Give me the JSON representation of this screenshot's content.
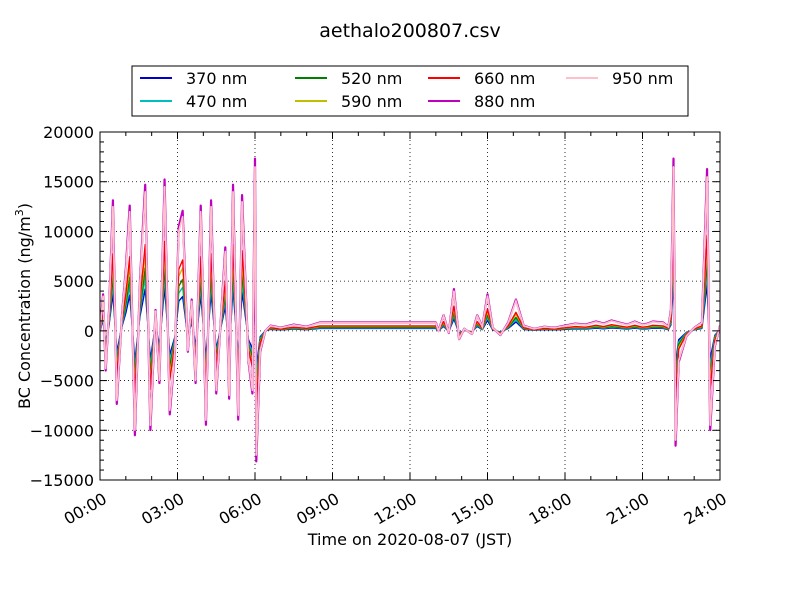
{
  "chart_data": {
    "type": "line",
    "title": "aethalo200807.csv",
    "xlabel": "Time on 2020-08-07 (JST)",
    "ylabel_main": "BC Concentration (ng/m",
    "ylabel_sup": "3",
    "ylabel_tail": ")",
    "xlim": [
      "00:00",
      "24:00"
    ],
    "ylim": [
      -15000,
      20000
    ],
    "x_ticks": [
      "00:00",
      "03:00",
      "06:00",
      "09:00",
      "12:00",
      "15:00",
      "18:00",
      "21:00",
      "24:00"
    ],
    "y_ticks": [
      "20000",
      "15000",
      "10000",
      "5000",
      "0",
      "−5000",
      "−10000",
      "−15000"
    ],
    "grid": true,
    "legend_placement": "top-center",
    "series": [
      {
        "name": "370 nm",
        "color": "#0000cc",
        "scale": 0.3
      },
      {
        "name": "470 nm",
        "color": "#00bfbf",
        "scale": 0.38
      },
      {
        "name": "520 nm",
        "color": "#008000",
        "scale": 0.45
      },
      {
        "name": "590 nm",
        "color": "#bfbf00",
        "scale": 0.55
      },
      {
        "name": "660 nm",
        "color": "#ff0000",
        "scale": 0.62
      },
      {
        "name": "880 nm",
        "color": "#bf00bf",
        "scale": 1.05
      },
      {
        "name": "950 nm",
        "color": "#ffc0cb",
        "scale": 1.0
      }
    ],
    "reference_series": {
      "description_of_values": "950 nm series, hours vs ng/m3",
      "points": [
        [
          0.0,
          0
        ],
        [
          0.12,
          3500
        ],
        [
          0.22,
          -3800
        ],
        [
          0.35,
          2000
        ],
        [
          0.5,
          12500
        ],
        [
          0.65,
          -7000
        ],
        [
          0.85,
          1500
        ],
        [
          1.0,
          6000
        ],
        [
          1.15,
          12000
        ],
        [
          1.35,
          -10000
        ],
        [
          1.55,
          5000
        ],
        [
          1.75,
          14000
        ],
        [
          1.95,
          -9500
        ],
        [
          2.15,
          2000
        ],
        [
          2.3,
          -5000
        ],
        [
          2.5,
          14500
        ],
        [
          2.7,
          -8000
        ],
        [
          2.9,
          -2000
        ],
        [
          3.05,
          10000
        ],
        [
          3.2,
          11500
        ],
        [
          3.4,
          -2000
        ],
        [
          3.55,
          3000
        ],
        [
          3.7,
          -5000
        ],
        [
          3.9,
          12000
        ],
        [
          4.1,
          -9000
        ],
        [
          4.3,
          12500
        ],
        [
          4.5,
          -6000
        ],
        [
          4.7,
          2000
        ],
        [
          4.85,
          8000
        ],
        [
          5.0,
          -6500
        ],
        [
          5.15,
          14000
        ],
        [
          5.35,
          -8500
        ],
        [
          5.5,
          13000
        ],
        [
          5.75,
          -3000
        ],
        [
          5.9,
          -6000
        ],
        [
          6.0,
          16500
        ],
        [
          6.05,
          -12500
        ],
        [
          6.2,
          -2000
        ],
        [
          6.4,
          0
        ],
        [
          6.6,
          500
        ],
        [
          7.0,
          300
        ],
        [
          7.5,
          600
        ],
        [
          8.0,
          400
        ],
        [
          8.5,
          800
        ],
        [
          9.0,
          800
        ],
        [
          10.0,
          800
        ],
        [
          11.0,
          800
        ],
        [
          12.0,
          800
        ],
        [
          13.0,
          800
        ],
        [
          13.1,
          0
        ],
        [
          13.3,
          1500
        ],
        [
          13.5,
          -200
        ],
        [
          13.7,
          4000
        ],
        [
          13.9,
          -800
        ],
        [
          14.1,
          200
        ],
        [
          14.4,
          -300
        ],
        [
          14.6,
          1500
        ],
        [
          14.8,
          400
        ],
        [
          15.0,
          3500
        ],
        [
          15.2,
          300
        ],
        [
          15.5,
          -400
        ],
        [
          15.8,
          800
        ],
        [
          16.1,
          3000
        ],
        [
          16.4,
          500
        ],
        [
          16.8,
          200
        ],
        [
          17.2,
          400
        ],
        [
          17.6,
          300
        ],
        [
          18.0,
          500
        ],
        [
          18.4,
          700
        ],
        [
          18.8,
          600
        ],
        [
          19.2,
          900
        ],
        [
          19.5,
          700
        ],
        [
          19.8,
          1000
        ],
        [
          20.1,
          800
        ],
        [
          20.4,
          600
        ],
        [
          20.7,
          900
        ],
        [
          21.0,
          600
        ],
        [
          21.2,
          700
        ],
        [
          21.4,
          900
        ],
        [
          21.8,
          800
        ],
        [
          22.0,
          400
        ],
        [
          22.1,
          2000
        ],
        [
          22.2,
          16500
        ],
        [
          22.28,
          -11000
        ],
        [
          22.4,
          -3000
        ],
        [
          22.7,
          -500
        ],
        [
          23.0,
          300
        ],
        [
          23.3,
          800
        ],
        [
          23.5,
          15500
        ],
        [
          23.62,
          -9500
        ],
        [
          23.8,
          -1500
        ],
        [
          24.0,
          500
        ]
      ]
    }
  }
}
